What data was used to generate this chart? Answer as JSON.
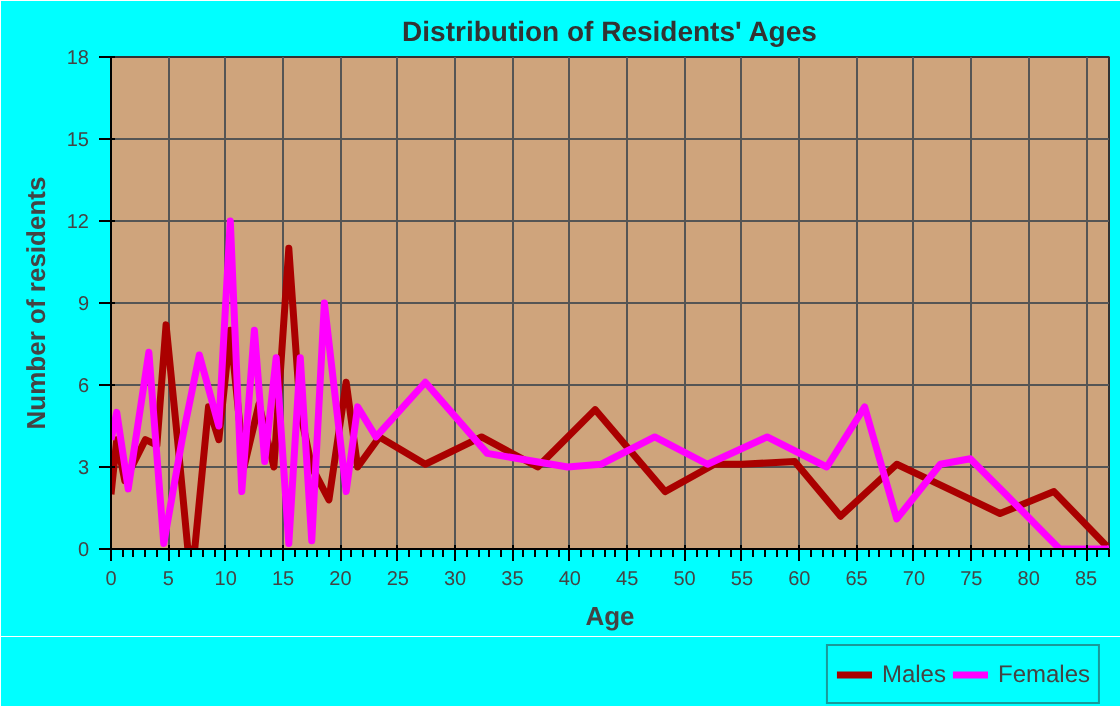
{
  "chart_data": {
    "type": "line",
    "title": "Distribution of Residents' Ages",
    "xlabel": "Age",
    "ylabel": "Number of residents",
    "xlim": [
      0,
      87
    ],
    "xticks": [
      0,
      5,
      10,
      15,
      20,
      25,
      30,
      35,
      40,
      45,
      50,
      55,
      60,
      65,
      70,
      75,
      80,
      85
    ],
    "ylim": [
      0,
      18
    ],
    "yticks": [
      0,
      3,
      6,
      9,
      12,
      15,
      18
    ],
    "grid": true,
    "legend": "bottom right",
    "line_style": "solid",
    "series": [
      {
        "name": "Males",
        "color": "#aa0000",
        "x": [
          0,
          0.5,
          1.2,
          3,
          4,
          4.8,
          5.8,
          6.7,
          7.3,
          8.5,
          9.4,
          10.4,
          11.6,
          12.9,
          14.2,
          15.5,
          16.5,
          17.5,
          19,
          20.5,
          21.5,
          23.4,
          27.4,
          32.3,
          37.2,
          42.2,
          48.3,
          52.6,
          55,
          59.6,
          63.6,
          68.5,
          72,
          77.5,
          82.2,
          86.8
        ],
        "values": [
          2,
          4,
          2.5,
          4,
          3.8,
          8.2,
          4,
          0,
          0,
          5.2,
          4,
          8,
          3,
          5.3,
          3,
          11,
          5,
          3,
          1.8,
          6.1,
          3,
          4.1,
          3.1,
          4.1,
          3,
          5.1,
          2.1,
          3.1,
          3.1,
          3.2,
          1.2,
          3.1,
          2.4,
          1.3,
          2.1,
          0.1
        ]
      },
      {
        "name": "Females",
        "color": "#ff00ff",
        "x": [
          0,
          0.5,
          1.5,
          3.3,
          4.6,
          6.2,
          7.7,
          9.4,
          10.4,
          11.4,
          12.5,
          13.4,
          14.4,
          15.5,
          16.5,
          17.5,
          18.6,
          20.5,
          21.5,
          23.1,
          27.4,
          32.8,
          39.8,
          42.7,
          47.4,
          52,
          57.2,
          62.4,
          65.7,
          68.5,
          72.3,
          74.9,
          78,
          82.7,
          87
        ],
        "values": [
          4,
          5,
          2.2,
          7.2,
          0.2,
          4,
          7.1,
          4.5,
          12,
          2.1,
          8,
          3.2,
          7,
          0.2,
          7,
          0.3,
          9,
          2.1,
          5.2,
          4.1,
          6.1,
          3.5,
          3,
          3.1,
          4.1,
          3.1,
          4.1,
          3,
          5.2,
          1.1,
          3.1,
          3.3,
          2,
          0,
          0
        ]
      }
    ]
  }
}
